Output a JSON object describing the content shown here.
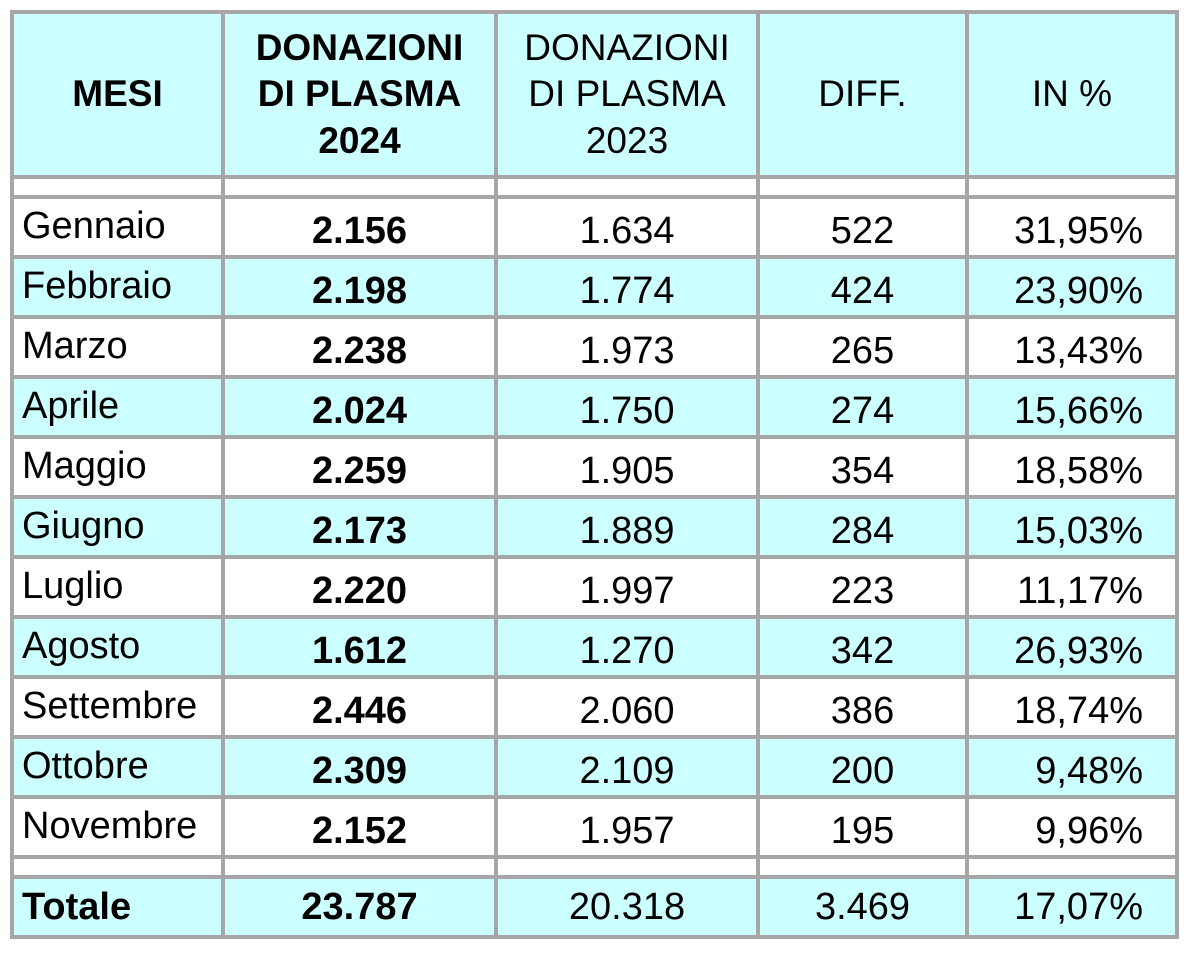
{
  "headers": {
    "months": "MESI",
    "donations_2024": [
      "DONAZIONI",
      "DI PLASMA",
      "2024"
    ],
    "donations_2023": [
      "DONAZIONI",
      "DI PLASMA",
      "2023"
    ],
    "diff": "DIFF.",
    "percent": "IN %"
  },
  "rows": [
    {
      "month": "Gennaio",
      "d2024": "2.156",
      "d2023": "1.634",
      "diff": "522",
      "pct": "31,95%"
    },
    {
      "month": "Febbraio",
      "d2024": "2.198",
      "d2023": "1.774",
      "diff": "424",
      "pct": "23,90%"
    },
    {
      "month": "Marzo",
      "d2024": "2.238",
      "d2023": "1.973",
      "diff": "265",
      "pct": "13,43%"
    },
    {
      "month": "Aprile",
      "d2024": "2.024",
      "d2023": "1.750",
      "diff": "274",
      "pct": "15,66%"
    },
    {
      "month": "Maggio",
      "d2024": "2.259",
      "d2023": "1.905",
      "diff": "354",
      "pct": "18,58%"
    },
    {
      "month": "Giugno",
      "d2024": "2.173",
      "d2023": "1.889",
      "diff": "284",
      "pct": "15,03%"
    },
    {
      "month": "Luglio",
      "d2024": "2.220",
      "d2023": "1.997",
      "diff": "223",
      "pct": "11,17%"
    },
    {
      "month": "Agosto",
      "d2024": "1.612",
      "d2023": "1.270",
      "diff": "342",
      "pct": "26,93%"
    },
    {
      "month": "Settembre",
      "d2024": "2.446",
      "d2023": "2.060",
      "diff": "386",
      "pct": "18,74%"
    },
    {
      "month": "Ottobre",
      "d2024": "2.309",
      "d2023": "2.109",
      "diff": "200",
      "pct": "9,48%"
    },
    {
      "month": "Novembre",
      "d2024": "2.152",
      "d2023": "1.957",
      "diff": "195",
      "pct": "9,96%"
    }
  ],
  "total": {
    "label": "Totale",
    "d2024": "23.787",
    "d2023": "20.318",
    "diff": "3.469",
    "pct": "17,07%"
  },
  "colors": {
    "row_highlight": "#ccffff",
    "grid": "#a6a6a6"
  }
}
